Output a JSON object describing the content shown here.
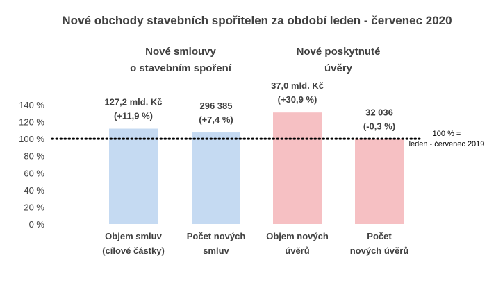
{
  "chart_data": {
    "type": "bar",
    "title": "Nové obchody stavebních spořitelen za období leden - červenec 2020",
    "groups": [
      {
        "lines": [
          "Nové smlouvy",
          "o stavebním spoření"
        ]
      },
      {
        "lines": [
          "Nové poskytnuté",
          "úvěry"
        ]
      }
    ],
    "categories": [
      [
        "Objem smluv",
        "(cílové částky)"
      ],
      [
        "Počet  nových",
        "smluv"
      ],
      [
        "Objem nových",
        "úvěrů"
      ],
      [
        "Počet",
        "nových úvěrů"
      ]
    ],
    "values": [
      111.9,
      107.4,
      130.9,
      99.7
    ],
    "data_labels": [
      [
        "127,2 mld. Kč",
        "(+11,9 %)"
      ],
      [
        "296 385",
        "(+7,4 %)"
      ],
      [
        "37,0 mld. Kč",
        "(+30,9 %)"
      ],
      [
        "32 036",
        "(-0,3 %)"
      ]
    ],
    "colors": [
      "#c5daf2",
      "#c5daf2",
      "#f6c0c3",
      "#f6c0c3"
    ],
    "ylim": [
      0,
      140
    ],
    "yticks": [
      0,
      20,
      40,
      60,
      80,
      100,
      120,
      140
    ],
    "ytick_labels": [
      "0 %",
      "20 %",
      "40 %",
      "60 %",
      "80 %",
      "100 %",
      "120 %",
      "140 %"
    ],
    "reference_line": {
      "value": 100,
      "label_lines": [
        "100 % =",
        "leden - červenec 2019"
      ]
    },
    "grid": false,
    "legend": "none"
  }
}
